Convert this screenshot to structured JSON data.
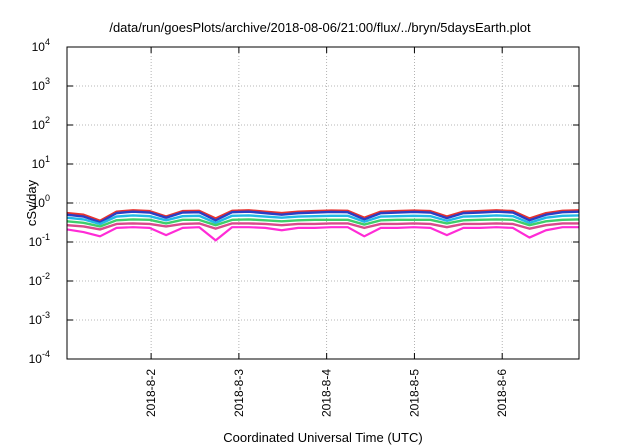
{
  "chart_data": {
    "type": "line",
    "title": "/data/run/goesPlots/archive/2018-08-06/21:00/flux/../bryn/5daysEarth.plot",
    "xlabel": "Coordinated Universal Time (UTC)",
    "ylabel": "cSv/day",
    "yscale": "log",
    "ylim": [
      0.0001,
      10000
    ],
    "y_ticks": [
      {
        "base": "10",
        "exp": "-4",
        "value": 0.0001
      },
      {
        "base": "10",
        "exp": "-3",
        "value": 0.001
      },
      {
        "base": "10",
        "exp": "-2",
        "value": 0.01
      },
      {
        "base": "10",
        "exp": "-1",
        "value": 0.1
      },
      {
        "base": "10",
        "exp": "0",
        "value": 1
      },
      {
        "base": "10",
        "exp": "1",
        "value": 10
      },
      {
        "base": "10",
        "exp": "2",
        "value": 100
      },
      {
        "base": "10",
        "exp": "3",
        "value": 1000
      },
      {
        "base": "10",
        "exp": "4",
        "value": 10000
      }
    ],
    "xlim": [
      "2018-08-01 01:00",
      "2018-08-06 21:00"
    ],
    "x_ticks": [
      {
        "label": "2018-8-2",
        "value": "2018-08-02 00:00"
      },
      {
        "label": "2018-8-3",
        "value": "2018-08-03 00:00"
      },
      {
        "label": "2018-8-4",
        "value": "2018-08-04 00:00"
      },
      {
        "label": "2018-8-5",
        "value": "2018-08-05 00:00"
      },
      {
        "label": "2018-8-6",
        "value": "2018-08-06 00:00"
      }
    ],
    "grid": true,
    "series": [
      {
        "color": "#e8322e",
        "base": 0.62,
        "values": [
          0.55,
          0.5,
          0.35,
          0.6,
          0.65,
          0.62,
          0.45,
          0.62,
          0.63,
          0.4,
          0.63,
          0.65,
          0.6,
          0.55,
          0.6,
          0.62,
          0.64,
          0.63,
          0.42,
          0.6,
          0.62,
          0.64,
          0.62,
          0.45,
          0.6,
          0.62,
          0.65,
          0.62,
          0.4,
          0.55,
          0.63,
          0.65
        ]
      },
      {
        "color": "#2b3ec4",
        "base": 0.56,
        "values": [
          0.5,
          0.45,
          0.32,
          0.55,
          0.6,
          0.57,
          0.42,
          0.57,
          0.58,
          0.36,
          0.58,
          0.6,
          0.55,
          0.5,
          0.55,
          0.57,
          0.59,
          0.58,
          0.38,
          0.55,
          0.57,
          0.59,
          0.57,
          0.41,
          0.55,
          0.57,
          0.6,
          0.57,
          0.36,
          0.5,
          0.58,
          0.6
        ]
      },
      {
        "color": "#22b8e6",
        "base": 0.45,
        "values": [
          0.42,
          0.38,
          0.29,
          0.45,
          0.48,
          0.46,
          0.36,
          0.46,
          0.47,
          0.31,
          0.47,
          0.48,
          0.45,
          0.42,
          0.45,
          0.46,
          0.47,
          0.47,
          0.33,
          0.45,
          0.46,
          0.47,
          0.46,
          0.35,
          0.45,
          0.46,
          0.48,
          0.46,
          0.31,
          0.42,
          0.47,
          0.48
        ]
      },
      {
        "color": "#3ecf6a",
        "base": 0.36,
        "values": [
          0.34,
          0.31,
          0.25,
          0.36,
          0.38,
          0.37,
          0.3,
          0.37,
          0.37,
          0.27,
          0.37,
          0.38,
          0.36,
          0.34,
          0.36,
          0.37,
          0.37,
          0.37,
          0.28,
          0.36,
          0.37,
          0.37,
          0.37,
          0.3,
          0.36,
          0.37,
          0.38,
          0.37,
          0.27,
          0.34,
          0.37,
          0.38
        ]
      },
      {
        "color": "#d94a8c",
        "base": 0.29,
        "values": [
          0.27,
          0.25,
          0.21,
          0.29,
          0.3,
          0.29,
          0.25,
          0.29,
          0.3,
          0.22,
          0.3,
          0.3,
          0.29,
          0.27,
          0.29,
          0.29,
          0.3,
          0.3,
          0.23,
          0.29,
          0.29,
          0.3,
          0.29,
          0.24,
          0.29,
          0.29,
          0.3,
          0.29,
          0.22,
          0.27,
          0.3,
          0.3
        ]
      },
      {
        "color": "#ff2bd6",
        "base": 0.23,
        "values": [
          0.21,
          0.18,
          0.14,
          0.23,
          0.24,
          0.23,
          0.15,
          0.23,
          0.24,
          0.11,
          0.24,
          0.24,
          0.23,
          0.2,
          0.23,
          0.23,
          0.24,
          0.24,
          0.14,
          0.23,
          0.23,
          0.24,
          0.23,
          0.15,
          0.23,
          0.23,
          0.24,
          0.23,
          0.13,
          0.2,
          0.24,
          0.24
        ]
      }
    ]
  }
}
